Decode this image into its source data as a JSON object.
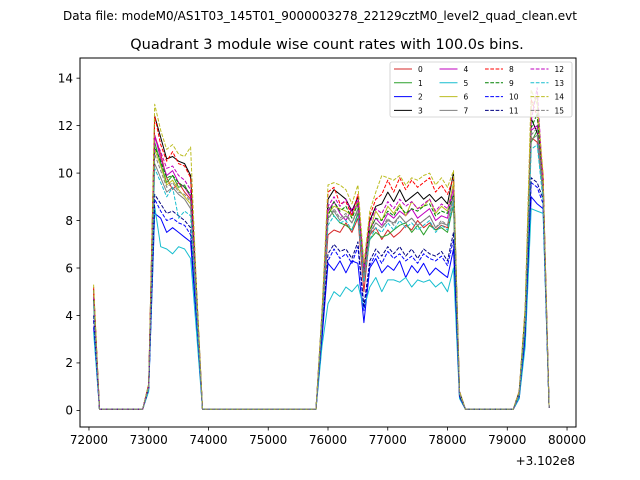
{
  "suptitle": "Data file: modeM0/AS1T03_145T01_9000003278_22129cztM0_level2_quad_clean.evt",
  "chart_data": {
    "type": "line",
    "title": "Quadrant 3 module wise count rates with 100.0s bins.",
    "xlabel": "",
    "ylabel": "",
    "x_offset_label": "+3.102e8",
    "xlim": [
      71850,
      80150
    ],
    "ylim": [
      -0.7,
      14.85
    ],
    "xticks": [
      72000,
      73000,
      74000,
      75000,
      76000,
      77000,
      78000,
      79000,
      80000
    ],
    "xtick_labels": [
      "72000",
      "73000",
      "74000",
      "75000",
      "76000",
      "77000",
      "78000",
      "79000",
      "80000"
    ],
    "yticks": [
      0,
      2,
      4,
      6,
      8,
      10,
      12,
      14
    ],
    "ytick_labels": [
      "0",
      "2",
      "4",
      "6",
      "8",
      "10",
      "12",
      "14"
    ],
    "x": [
      72077,
      72177,
      72900,
      73000,
      73100,
      73200,
      73300,
      73400,
      73500,
      73600,
      73700,
      73800,
      73900,
      75800,
      75900,
      76000,
      76100,
      76200,
      76300,
      76400,
      76500,
      76600,
      76700,
      76800,
      76900,
      77000,
      77100,
      77200,
      77300,
      77400,
      77500,
      77600,
      77700,
      77800,
      77900,
      78000,
      78100,
      78200,
      78300,
      78400,
      79000,
      79100,
      79200,
      79300,
      79400,
      79500,
      79600,
      79700
    ],
    "legend_position": "upper right",
    "series": [
      {
        "name": "0",
        "color": "#d62728",
        "dash": "solid",
        "values": [
          4.9,
          0.05,
          0.05,
          1.0,
          11.6,
          10.8,
          9.8,
          9.3,
          9.6,
          9.2,
          8.9,
          4.7,
          0.05,
          0.05,
          3.7,
          7.4,
          7.6,
          7.5,
          7.9,
          7.5,
          8.1,
          5.0,
          7.4,
          7.7,
          7.2,
          7.6,
          7.3,
          7.5,
          7.8,
          7.6,
          8.0,
          7.7,
          7.9,
          7.6,
          7.8,
          7.7,
          8.6,
          0.7,
          0.05,
          0.05,
          0.05,
          0.05,
          0.7,
          3.9,
          11.5,
          11.3,
          9.1,
          0.1
        ]
      },
      {
        "name": "1",
        "color": "#2ca02c",
        "dash": "solid",
        "values": [
          4.7,
          0.05,
          0.05,
          1.0,
          11.3,
          10.4,
          9.6,
          9.9,
          9.4,
          9.5,
          9.0,
          4.6,
          0.05,
          0.05,
          3.8,
          8.6,
          8.2,
          7.9,
          7.8,
          7.6,
          8.3,
          5.6,
          7.2,
          7.5,
          7.3,
          7.4,
          7.6,
          7.8,
          7.9,
          7.5,
          7.8,
          7.4,
          7.8,
          7.6,
          7.7,
          7.5,
          8.7,
          0.7,
          0.05,
          0.05,
          0.05,
          0.05,
          0.6,
          3.8,
          11.3,
          11.8,
          9.0,
          0.1
        ]
      },
      {
        "name": "2",
        "color": "#0000ff",
        "dash": "solid",
        "values": [
          3.5,
          0.05,
          0.05,
          0.9,
          8.3,
          8.1,
          7.5,
          7.7,
          7.5,
          7.3,
          7.1,
          3.7,
          0.05,
          0.05,
          3.0,
          6.2,
          5.9,
          6.3,
          5.8,
          6.3,
          6.2,
          3.7,
          6.0,
          6.4,
          5.8,
          6.1,
          5.9,
          6.3,
          5.6,
          6.1,
          5.8,
          6.2,
          5.7,
          6.0,
          5.8,
          5.6,
          6.8,
          0.6,
          0.05,
          0.05,
          0.05,
          0.05,
          0.5,
          3.0,
          9.0,
          8.7,
          8.5,
          0.1
        ]
      },
      {
        "name": "3",
        "color": "#000000",
        "dash": "solid",
        "values": [
          5.1,
          0.05,
          0.05,
          1.1,
          12.4,
          11.5,
          10.6,
          10.7,
          10.5,
          10.4,
          9.9,
          5.1,
          0.05,
          0.05,
          4.1,
          8.9,
          9.3,
          9.1,
          8.9,
          8.4,
          9.0,
          5.9,
          8.0,
          8.6,
          8.7,
          9.2,
          8.8,
          9.3,
          8.8,
          9.0,
          9.2,
          8.9,
          9.1,
          8.8,
          9.0,
          8.7,
          10.0,
          0.8,
          0.05,
          0.05,
          0.05,
          0.05,
          0.8,
          4.2,
          12.3,
          11.7,
          9.8,
          0.1
        ]
      },
      {
        "name": "4",
        "color": "#bf00bf",
        "dash": "solid",
        "values": [
          4.8,
          0.05,
          0.05,
          1.0,
          11.6,
          10.6,
          9.9,
          10.1,
          9.6,
          9.4,
          9.0,
          4.7,
          0.05,
          0.05,
          3.9,
          8.4,
          8.8,
          8.3,
          8.0,
          8.5,
          8.6,
          5.7,
          7.6,
          8.1,
          7.8,
          8.3,
          8.1,
          8.4,
          8.2,
          8.5,
          8.1,
          8.3,
          8.5,
          8.0,
          8.2,
          8.1,
          9.4,
          0.7,
          0.05,
          0.05,
          0.05,
          0.05,
          0.7,
          3.9,
          11.8,
          12.0,
          9.4,
          0.1
        ]
      },
      {
        "name": "5",
        "color": "#17becf",
        "dash": "solid",
        "values": [
          3.3,
          0.05,
          0.05,
          0.8,
          8.6,
          6.9,
          6.8,
          6.6,
          6.9,
          6.8,
          6.4,
          3.3,
          0.05,
          0.05,
          2.7,
          4.5,
          5.0,
          4.8,
          5.2,
          5.0,
          5.3,
          4.3,
          5.2,
          5.6,
          5.0,
          5.5,
          5.5,
          5.4,
          5.6,
          5.2,
          5.5,
          5.4,
          5.5,
          5.2,
          5.4,
          5.0,
          6.0,
          0.5,
          0.05,
          0.05,
          0.05,
          0.05,
          0.5,
          2.7,
          8.5,
          8.4,
          8.3,
          0.1
        ]
      },
      {
        "name": "6",
        "color": "#bcbd22",
        "dash": "solid",
        "values": [
          4.9,
          0.05,
          0.05,
          1.0,
          11.0,
          10.3,
          9.5,
          9.7,
          9.3,
          9.0,
          8.7,
          4.6,
          0.05,
          0.05,
          3.8,
          8.3,
          8.6,
          8.5,
          8.4,
          8.2,
          8.8,
          5.6,
          7.6,
          8.4,
          8.0,
          8.6,
          8.3,
          8.7,
          8.2,
          8.8,
          8.5,
          8.6,
          8.9,
          8.3,
          8.6,
          8.4,
          9.6,
          0.7,
          0.05,
          0.05,
          0.05,
          0.05,
          0.7,
          3.9,
          12.8,
          13.2,
          9.5,
          0.1
        ]
      },
      {
        "name": "7",
        "color": "#7f7f7f",
        "dash": "solid",
        "values": [
          4.6,
          0.05,
          0.05,
          0.9,
          10.4,
          9.8,
          9.2,
          9.4,
          9.1,
          8.9,
          8.5,
          4.4,
          0.05,
          0.05,
          3.7,
          8.1,
          8.4,
          8.0,
          8.2,
          7.9,
          8.5,
          5.5,
          7.5,
          7.9,
          7.7,
          8.0,
          7.9,
          8.2,
          7.9,
          8.1,
          7.8,
          8.0,
          8.2,
          7.7,
          7.9,
          7.8,
          9.1,
          0.7,
          0.05,
          0.05,
          0.05,
          0.05,
          0.6,
          3.7,
          11.4,
          11.6,
          9.1,
          0.1
        ]
      },
      {
        "name": "8",
        "color": "#ff0000",
        "dash": "dashed",
        "values": [
          5.2,
          0.05,
          0.05,
          1.1,
          12.4,
          11.2,
          10.5,
          10.9,
          10.4,
          10.3,
          9.8,
          5.0,
          0.05,
          0.05,
          4.0,
          9.2,
          9.4,
          8.7,
          8.8,
          8.2,
          9.1,
          6.0,
          8.2,
          8.9,
          9.1,
          9.7,
          9.2,
          9.8,
          9.3,
          9.7,
          9.4,
          9.6,
          9.8,
          9.2,
          9.5,
          9.1,
          9.8,
          0.8,
          0.05,
          0.05,
          0.05,
          0.05,
          0.8,
          4.3,
          13.1,
          12.4,
          9.9,
          0.1
        ]
      },
      {
        "name": "9",
        "color": "#008000",
        "dash": "dashed",
        "values": [
          4.7,
          0.05,
          0.05,
          1.0,
          11.1,
          10.5,
          9.8,
          9.9,
          9.6,
          9.4,
          9.1,
          4.6,
          0.05,
          0.05,
          3.8,
          8.2,
          8.8,
          8.4,
          8.6,
          8.1,
          8.7,
          5.8,
          7.6,
          8.1,
          8.0,
          8.4,
          8.2,
          8.6,
          8.3,
          8.5,
          8.4,
          8.6,
          8.7,
          8.2,
          8.4,
          8.3,
          9.1,
          0.7,
          0.05,
          0.05,
          0.05,
          0.05,
          0.7,
          4.0,
          11.9,
          12.5,
          9.3,
          0.1
        ]
      },
      {
        "name": "10",
        "color": "#0000ff",
        "dash": "dashed",
        "values": [
          3.8,
          0.05,
          0.05,
          0.9,
          8.9,
          8.4,
          8.0,
          8.1,
          7.9,
          7.8,
          7.4,
          3.9,
          0.05,
          0.05,
          3.2,
          6.3,
          6.8,
          6.4,
          6.6,
          6.2,
          6.9,
          4.2,
          6.1,
          6.6,
          6.2,
          6.7,
          6.4,
          6.6,
          6.3,
          6.5,
          6.2,
          6.6,
          6.4,
          6.3,
          6.5,
          6.1,
          7.2,
          0.6,
          0.05,
          0.05,
          0.05,
          0.05,
          0.6,
          3.2,
          9.6,
          9.4,
          8.7,
          0.1
        ]
      },
      {
        "name": "11",
        "color": "#000080",
        "dash": "dashed",
        "values": [
          4.0,
          0.05,
          0.05,
          0.9,
          9.1,
          8.7,
          8.3,
          8.4,
          8.2,
          8.0,
          7.7,
          4.0,
          0.05,
          0.05,
          3.3,
          6.6,
          7.0,
          6.7,
          6.8,
          6.4,
          7.1,
          4.4,
          6.3,
          6.8,
          6.5,
          6.9,
          6.6,
          6.9,
          6.5,
          6.8,
          6.4,
          6.8,
          6.6,
          6.5,
          6.7,
          6.3,
          7.5,
          0.6,
          0.05,
          0.05,
          0.05,
          0.05,
          0.6,
          3.3,
          9.8,
          9.6,
          8.9,
          0.1
        ]
      },
      {
        "name": "12",
        "color": "#bf00bf",
        "dash": "dashed",
        "values": [
          4.8,
          0.05,
          0.05,
          1.0,
          11.5,
          10.9,
          10.2,
          10.3,
          9.9,
          9.7,
          9.3,
          4.8,
          0.05,
          0.05,
          3.9,
          8.6,
          9.0,
          8.6,
          8.9,
          8.3,
          8.9,
          5.9,
          7.9,
          8.5,
          8.3,
          8.8,
          8.5,
          8.9,
          8.6,
          8.8,
          8.5,
          8.7,
          8.9,
          8.4,
          8.7,
          8.5,
          9.3,
          0.7,
          0.05,
          0.05,
          0.05,
          0.05,
          0.7,
          4.0,
          12.2,
          13.6,
          9.5,
          0.1
        ]
      },
      {
        "name": "13",
        "color": "#17becf",
        "dash": "dashed",
        "values": [
          4.4,
          0.05,
          0.05,
          0.9,
          10.2,
          9.6,
          9.0,
          9.4,
          8.1,
          8.4,
          8.2,
          4.2,
          0.05,
          0.05,
          3.6,
          7.8,
          8.2,
          7.9,
          8.0,
          7.6,
          8.2,
          5.4,
          7.2,
          7.7,
          7.5,
          7.9,
          7.6,
          8.0,
          7.7,
          7.9,
          7.6,
          7.8,
          8.0,
          7.5,
          7.8,
          7.6,
          8.8,
          0.7,
          0.05,
          0.05,
          0.05,
          0.05,
          0.6,
          3.6,
          11.0,
          11.2,
          8.8,
          0.1
        ]
      },
      {
        "name": "14",
        "color": "#bcbd22",
        "dash": "dashed",
        "values": [
          5.3,
          0.05,
          0.05,
          1.1,
          12.9,
          11.8,
          11.0,
          11.2,
          10.8,
          10.7,
          11.1,
          5.2,
          0.05,
          0.05,
          4.2,
          9.5,
          9.6,
          9.5,
          9.3,
          8.7,
          9.5,
          6.2,
          8.4,
          9.2,
          9.9,
          9.8,
          9.7,
          9.9,
          9.5,
          9.8,
          9.7,
          9.9,
          10.0,
          9.5,
          9.8,
          9.4,
          10.1,
          0.8,
          0.05,
          0.05,
          0.05,
          0.05,
          0.8,
          4.4,
          13.5,
          12.9,
          10.0,
          0.1
        ]
      },
      {
        "name": "15",
        "color": "#7f7f7f",
        "dash": "dashed",
        "values": [
          4.6,
          0.05,
          0.05,
          1.0,
          10.8,
          10.1,
          9.4,
          9.6,
          9.2,
          9.1,
          8.8,
          4.5,
          0.05,
          0.05,
          3.7,
          8.0,
          8.5,
          8.1,
          8.3,
          7.9,
          8.4,
          5.6,
          7.4,
          7.9,
          7.7,
          8.1,
          7.8,
          8.2,
          7.9,
          8.1,
          7.8,
          8.0,
          8.2,
          7.7,
          8.0,
          7.8,
          9.0,
          0.7,
          0.05,
          0.05,
          0.05,
          0.05,
          0.7,
          3.8,
          11.6,
          11.9,
          9.2,
          0.1
        ]
      }
    ]
  }
}
